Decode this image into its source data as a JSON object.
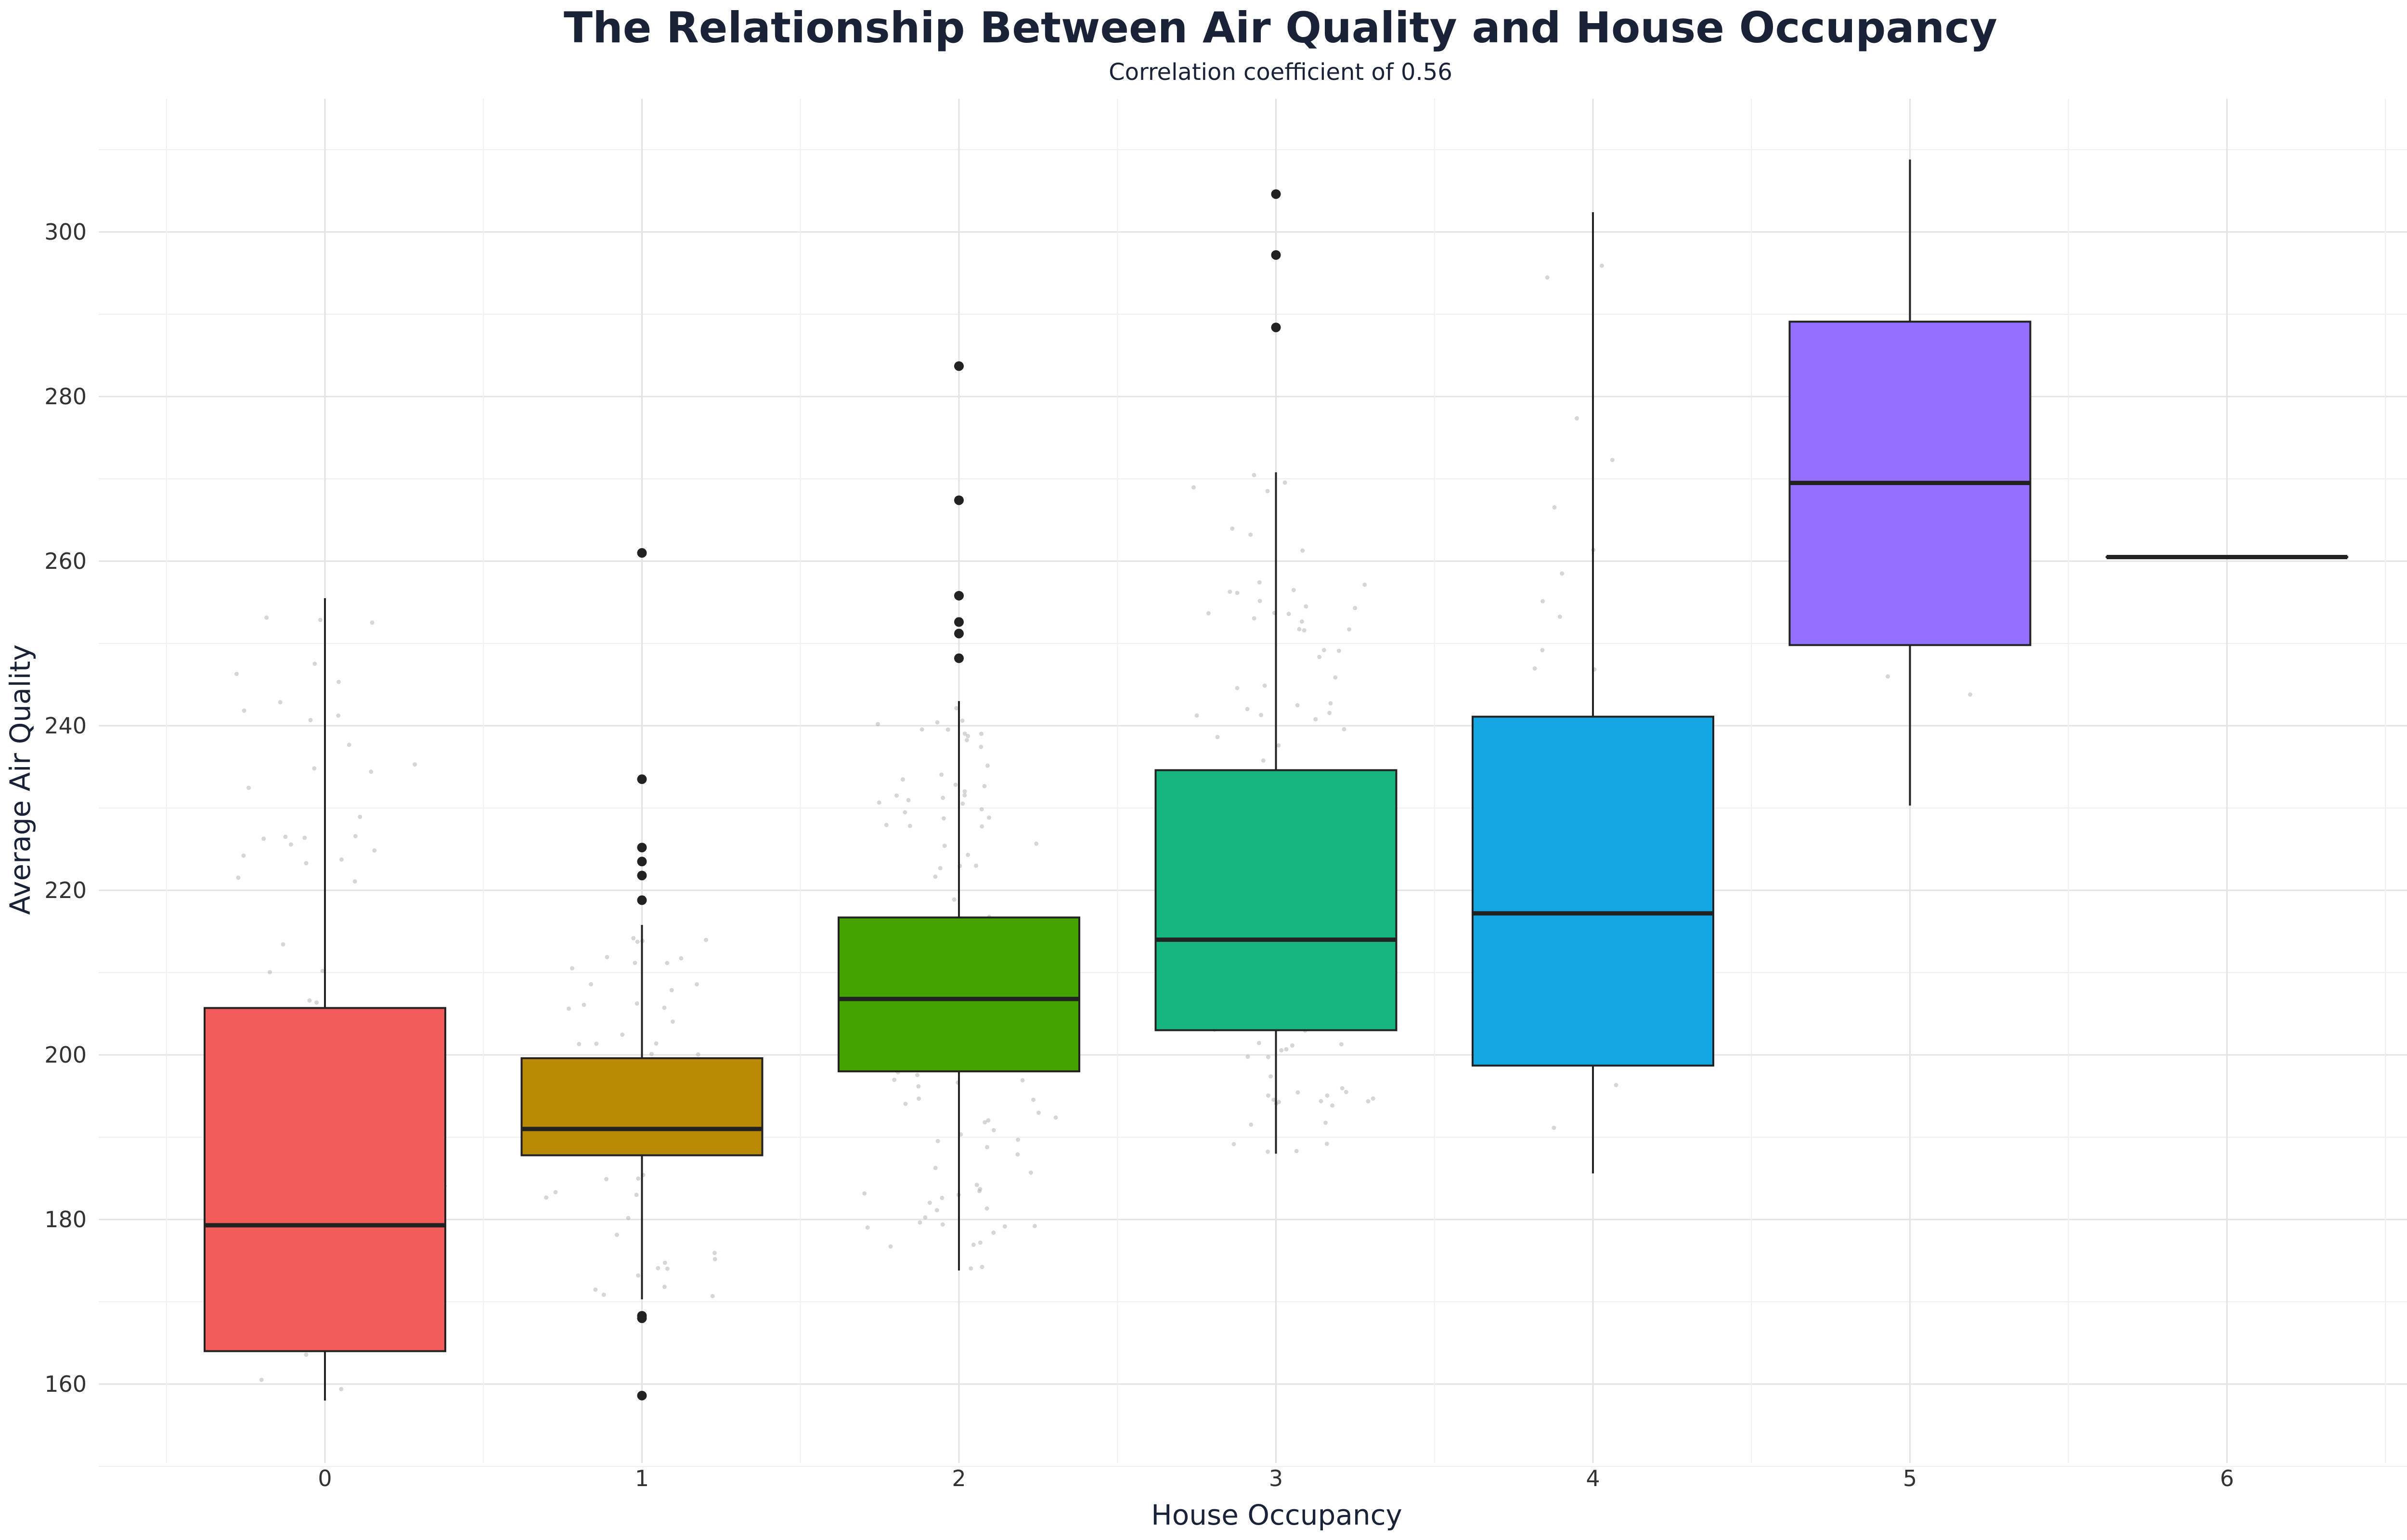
{
  "chart_data": {
    "type": "box",
    "title": "The Relationship Between Air Quality and House Occupancy",
    "subtitle": "Correlation coefficient of 0.56",
    "xlabel": "House Occupancy",
    "ylabel": "Average Air Quality",
    "ylim": [
      150,
      317
    ],
    "y_ticks": [
      160,
      180,
      200,
      220,
      240,
      260,
      280,
      300
    ],
    "categories": [
      "0",
      "1",
      "2",
      "3",
      "4",
      "5",
      "6"
    ],
    "boxes": [
      {
        "category": "0",
        "color": "#F25C5A",
        "whisker_low": 158,
        "q1": 164,
        "median": 179.3,
        "q3": 205.7,
        "whisker_high": 255.5,
        "outliers": []
      },
      {
        "category": "1",
        "color": "#B88A05",
        "whisker_low": 170.3,
        "q1": 187.8,
        "median": 191,
        "q3": 199.6,
        "whisker_high": 215.8,
        "outliers": [
          261,
          233.5,
          225.2,
          223.5,
          221.8,
          218.8,
          168.3,
          168,
          158.6
        ]
      },
      {
        "category": "2",
        "color": "#45A300",
        "whisker_low": 173.8,
        "q1": 198,
        "median": 206.8,
        "q3": 216.7,
        "whisker_high": 243,
        "outliers": [
          283.7,
          267.4,
          255.8,
          252.6,
          251.2,
          248.2
        ]
      },
      {
        "category": "3",
        "color": "#17B580",
        "whisker_low": 188,
        "q1": 203,
        "median": 214,
        "q3": 234.6,
        "whisker_high": 270.8,
        "outliers": [
          304.6,
          297.2,
          288.4
        ]
      },
      {
        "category": "4",
        "color": "#14A6E3",
        "whisker_low": 185.6,
        "q1": 198.7,
        "median": 217.2,
        "q3": 241.1,
        "whisker_high": 302.4,
        "outliers": []
      },
      {
        "category": "5",
        "color": "#9370FF",
        "whisker_low": 230.3,
        "q1": 249.8,
        "median": 269.5,
        "q3": 289.1,
        "whisker_high": 308.8,
        "outliers": []
      },
      {
        "category": "6",
        "color": "#222222",
        "whisker_low": 260.5,
        "q1": 260.5,
        "median": 260.5,
        "q3": 260.5,
        "whisker_high": 260.5,
        "outliers": []
      }
    ],
    "grid": true,
    "legend": "none",
    "jitter_points": "faint grey jittered observations behind each box",
    "colors": {
      "outline": "#222222",
      "grid_major": "#e3e3e3",
      "grid_minor": "#efefef",
      "jitter": "#b5b5b5",
      "text": "#1a2238"
    }
  }
}
